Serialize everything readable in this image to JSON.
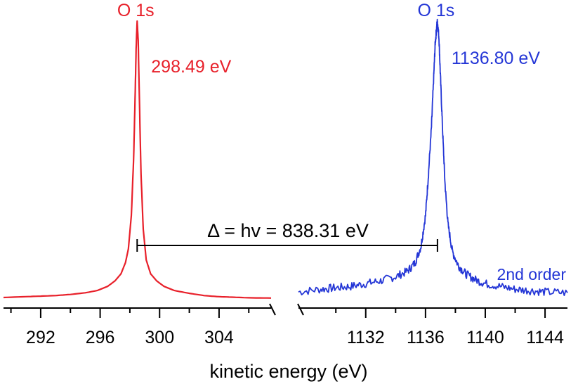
{
  "chart_data": [
    {
      "type": "line",
      "xlabel": "kinetic energy (eV)",
      "xlim": [
        289.5,
        307.5
      ],
      "ylim": [
        0,
        1
      ],
      "ticks_major": [
        292,
        296,
        300,
        304
      ],
      "ticks_minor": [
        290,
        294,
        298,
        302,
        306
      ],
      "grid": false,
      "series": [
        {
          "name": "O 1s",
          "color": "#e8202a",
          "peak_label": "298.49 eV",
          "peak_position": 298.49,
          "x": [
            289.5,
            291,
            292,
            293,
            294,
            295,
            295.8,
            296.5,
            297.0,
            297.4,
            297.7,
            297.9,
            298.1,
            298.25,
            298.35,
            298.42,
            298.49,
            298.56,
            298.64,
            298.75,
            298.9,
            299.1,
            299.4,
            299.8,
            300.3,
            301,
            302,
            303,
            304,
            305,
            306,
            307.5
          ],
          "y": [
            0.005,
            0.008,
            0.01,
            0.012,
            0.016,
            0.022,
            0.03,
            0.045,
            0.065,
            0.09,
            0.13,
            0.18,
            0.3,
            0.5,
            0.72,
            0.9,
            1.0,
            0.93,
            0.72,
            0.45,
            0.25,
            0.14,
            0.09,
            0.065,
            0.045,
            0.03,
            0.02,
            0.012,
            0.008,
            0.006,
            0.004,
            0.003
          ]
        }
      ]
    },
    {
      "type": "line",
      "xlim": [
        1127.5,
        1145.5
      ],
      "ylim": [
        0,
        1
      ],
      "ticks_major": [
        1132,
        1136,
        1140,
        1144
      ],
      "ticks_minor": [
        1130,
        1134,
        1138,
        1142
      ],
      "grid": false,
      "annotation": "2nd order",
      "series": [
        {
          "name": "O 1s",
          "color": "#2436d6",
          "peak_label": "1136.80 eV",
          "peak_position": 1136.8,
          "x": [
            1127.5,
            1129,
            1130,
            1131,
            1132,
            1133,
            1134,
            1134.8,
            1135.3,
            1135.7,
            1136.0,
            1136.2,
            1136.4,
            1136.55,
            1136.65,
            1136.75,
            1136.8,
            1136.9,
            1137.0,
            1137.15,
            1137.3,
            1137.5,
            1137.8,
            1138.2,
            1138.7,
            1139.3,
            1140,
            1141,
            1142,
            1143,
            1144,
            1145.5
          ],
          "y": [
            0.025,
            0.035,
            0.04,
            0.045,
            0.055,
            0.065,
            0.08,
            0.1,
            0.13,
            0.19,
            0.3,
            0.45,
            0.62,
            0.8,
            0.92,
            0.98,
            1.0,
            0.94,
            0.8,
            0.6,
            0.42,
            0.27,
            0.17,
            0.12,
            0.09,
            0.07,
            0.055,
            0.045,
            0.035,
            0.03,
            0.025,
            0.022
          ]
        }
      ]
    }
  ],
  "delta_label": "Δ = hv = 838.31 eV"
}
